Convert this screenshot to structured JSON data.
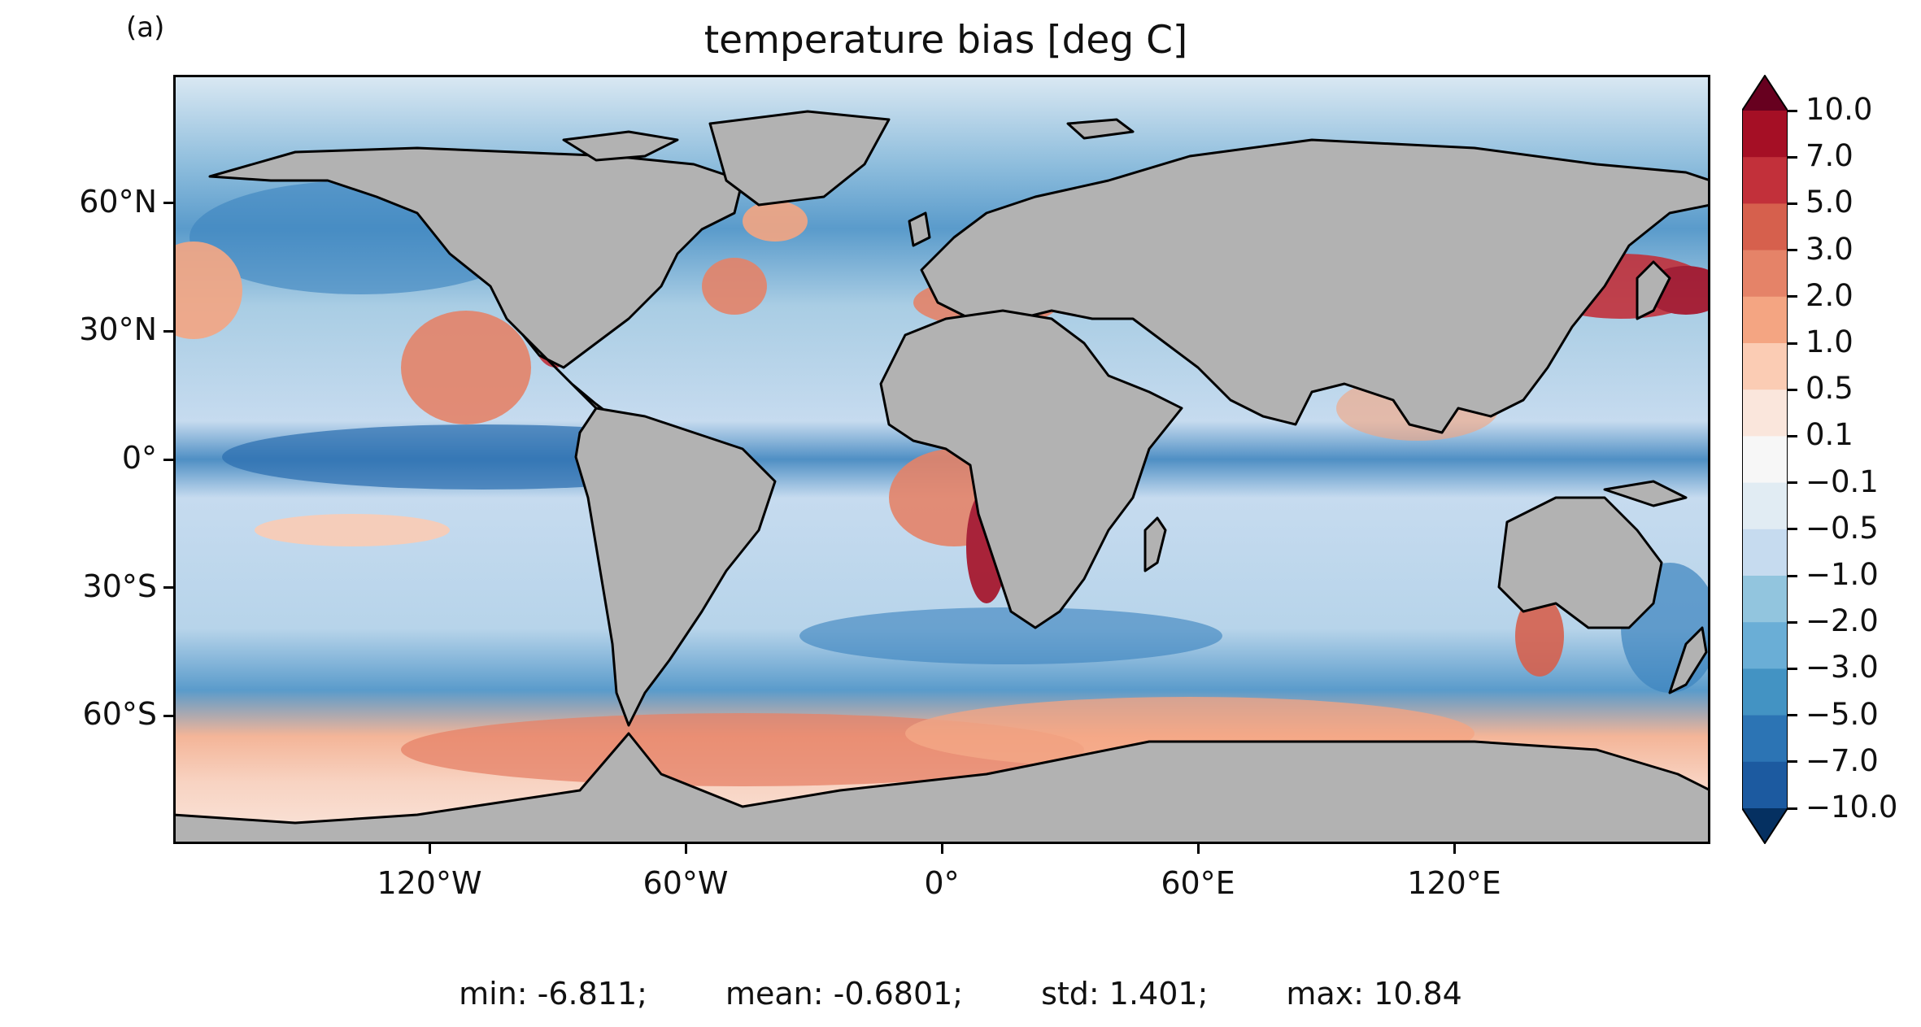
{
  "panel_label": "(a)",
  "title": "temperature bias [deg C]",
  "map": {
    "projection": "plate-carree",
    "land_color": "#b2b2b2",
    "coastline_color": "#000000",
    "colormap": "RdBu_r",
    "extent_lon": [
      -180,
      180
    ],
    "extent_lat": [
      -90,
      90
    ],
    "lat_ticks": [
      {
        "value": 60,
        "label": "60°N"
      },
      {
        "value": 30,
        "label": "30°N"
      },
      {
        "value": 0,
        "label": "0°"
      },
      {
        "value": -30,
        "label": "30°S"
      },
      {
        "value": -60,
        "label": "60°S"
      }
    ],
    "lon_ticks": [
      {
        "value": -120,
        "label": "120°W"
      },
      {
        "value": -60,
        "label": "60°W"
      },
      {
        "value": 0,
        "label": "0°"
      },
      {
        "value": 60,
        "label": "60°E"
      },
      {
        "value": 120,
        "label": "120°E"
      }
    ]
  },
  "colorbar": {
    "extend": "both",
    "levels": [
      "10.0",
      "7.0",
      "5.0",
      "3.0",
      "2.0",
      "1.0",
      "0.5",
      "0.1",
      "−0.1",
      "−0.5",
      "−1.0",
      "−2.0",
      "−3.0",
      "−5.0",
      "−7.0",
      "−10.0"
    ],
    "colors": [
      "#67001f",
      "#a50f25",
      "#c2303a",
      "#d6604d",
      "#e58368",
      "#f4a582",
      "#fbccb4",
      "#fae6dc",
      "#f7f7f7",
      "#e1ecf3",
      "#c6dbef",
      "#92c5de",
      "#6aaed6",
      "#4393c3",
      "#2c74b4",
      "#1c5aa0",
      "#053061"
    ]
  },
  "stats": {
    "min": "min: -6.811;",
    "mean": "mean: -0.6801;",
    "std": "std: 1.401;",
    "max": "max: 10.84"
  }
}
